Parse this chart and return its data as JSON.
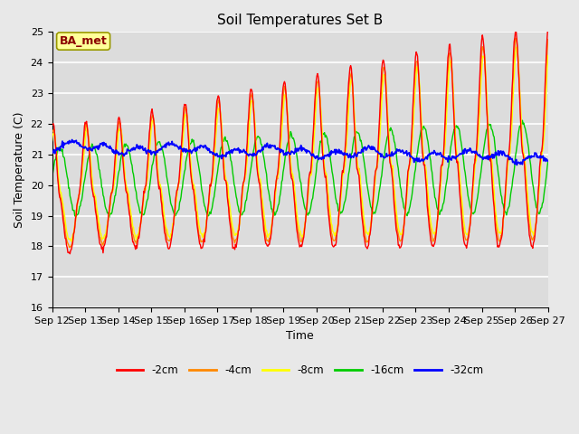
{
  "title": "Soil Temperatures Set B",
  "xlabel": "Time",
  "ylabel": "Soil Temperature (C)",
  "ylim": [
    16.0,
    25.0
  ],
  "yticks": [
    16.0,
    17.0,
    18.0,
    19.0,
    20.0,
    21.0,
    22.0,
    23.0,
    24.0,
    25.0
  ],
  "xtick_labels": [
    "Sep 12",
    "Sep 13",
    "Sep 14",
    "Sep 15",
    "Sep 16",
    "Sep 17",
    "Sep 18",
    "Sep 19",
    "Sep 20",
    "Sep 21",
    "Sep 22",
    "Sep 23",
    "Sep 24",
    "Sep 25",
    "Sep 26",
    "Sep 27"
  ],
  "legend_labels": [
    "-2cm",
    "-4cm",
    "-8cm",
    "-16cm",
    "-32cm"
  ],
  "line_colors": [
    "#ff0000",
    "#ff8800",
    "#ffff00",
    "#00cc00",
    "#0000ff"
  ],
  "background_color": "#dcdcdc",
  "plot_bg_color": "#dcdcdc",
  "fig_bg_color": "#e8e8e8",
  "annotation_text": "BA_met",
  "annotation_color": "#8b0000",
  "annotation_bg": "#ffff99",
  "annotation_border": "#999900",
  "n_points": 720,
  "title_fontsize": 11,
  "axis_label_fontsize": 9,
  "tick_fontsize": 8
}
